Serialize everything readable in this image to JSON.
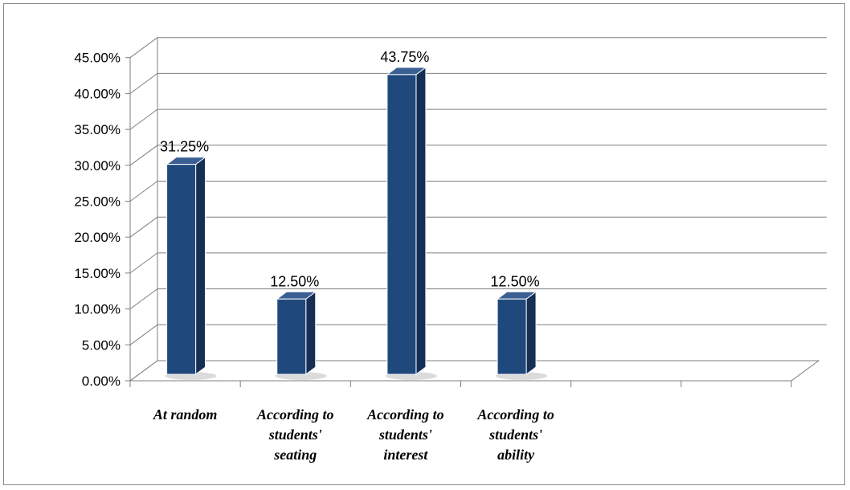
{
  "chart_data": {
    "type": "bar",
    "title": "",
    "xlabel": "",
    "ylabel": "",
    "categories": [
      "At random",
      "According to students' seating",
      "According to students' interest",
      "According to students' ability",
      "",
      ""
    ],
    "category_label_lines": [
      [
        "At random"
      ],
      [
        "According to",
        "students'",
        "seating"
      ],
      [
        "According to",
        "students'",
        "interest"
      ],
      [
        "According to",
        "students'",
        "ability"
      ],
      [],
      []
    ],
    "values": [
      31.25,
      12.5,
      43.75,
      12.5,
      null,
      null
    ],
    "data_labels": [
      "31.25%",
      "12.50%",
      "43.75%",
      "12.50%",
      "",
      ""
    ],
    "ylim": [
      0,
      45
    ],
    "y_tick_values": [
      0,
      5,
      10,
      15,
      20,
      25,
      30,
      35,
      40,
      45
    ],
    "y_tick_labels": [
      "0.00%",
      "5.00%",
      "10.00%",
      "15.00%",
      "20.00%",
      "25.00%",
      "30.00%",
      "35.00%",
      "40.00%",
      "45.00%"
    ],
    "grid": true,
    "legend": "none",
    "style": "3d-column",
    "colors": {
      "bar_front": "#1f497d",
      "bar_side": "#162f55",
      "bar_top": "#3a5f93",
      "gridline": "#7f7f7f",
      "axis": "#7f7f7f"
    }
  }
}
